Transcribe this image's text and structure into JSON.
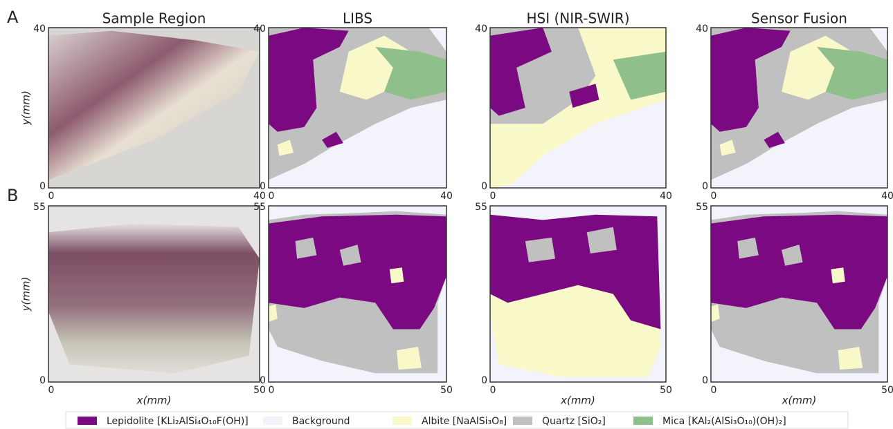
{
  "row_labels": [
    "A",
    "B"
  ],
  "column_titles": [
    "Sample Region",
    "LIBS",
    "HSI (NIR-SWIR)",
    "Sensor Fusion"
  ],
  "rows": [
    {
      "y_label": "y(mm)",
      "y_ticks": [
        0,
        40
      ],
      "x_ticks": [
        0,
        40
      ]
    },
    {
      "y_label": "y(mm)",
      "x_label": "x(mm)",
      "y_ticks": [
        0,
        55
      ],
      "x_ticks": [
        0,
        50
      ]
    }
  ],
  "legend": [
    {
      "name": "Lepidolite [KLi₂AlSi₄O₁₀F(OH)]",
      "color": "#7b0a82"
    },
    {
      "name": "Background",
      "color": "#f3f3fb"
    },
    {
      "name": "Albite [NaAlSi₃O₈]",
      "color": "#f8f8c8"
    },
    {
      "name": "Quartz [SiO₂]",
      "color": "#c0c0c0"
    },
    {
      "name": "Mica [KAl₂(AlSi₃O₁₀)(OH)₂]",
      "color": "#8fbf8a"
    }
  ]
}
